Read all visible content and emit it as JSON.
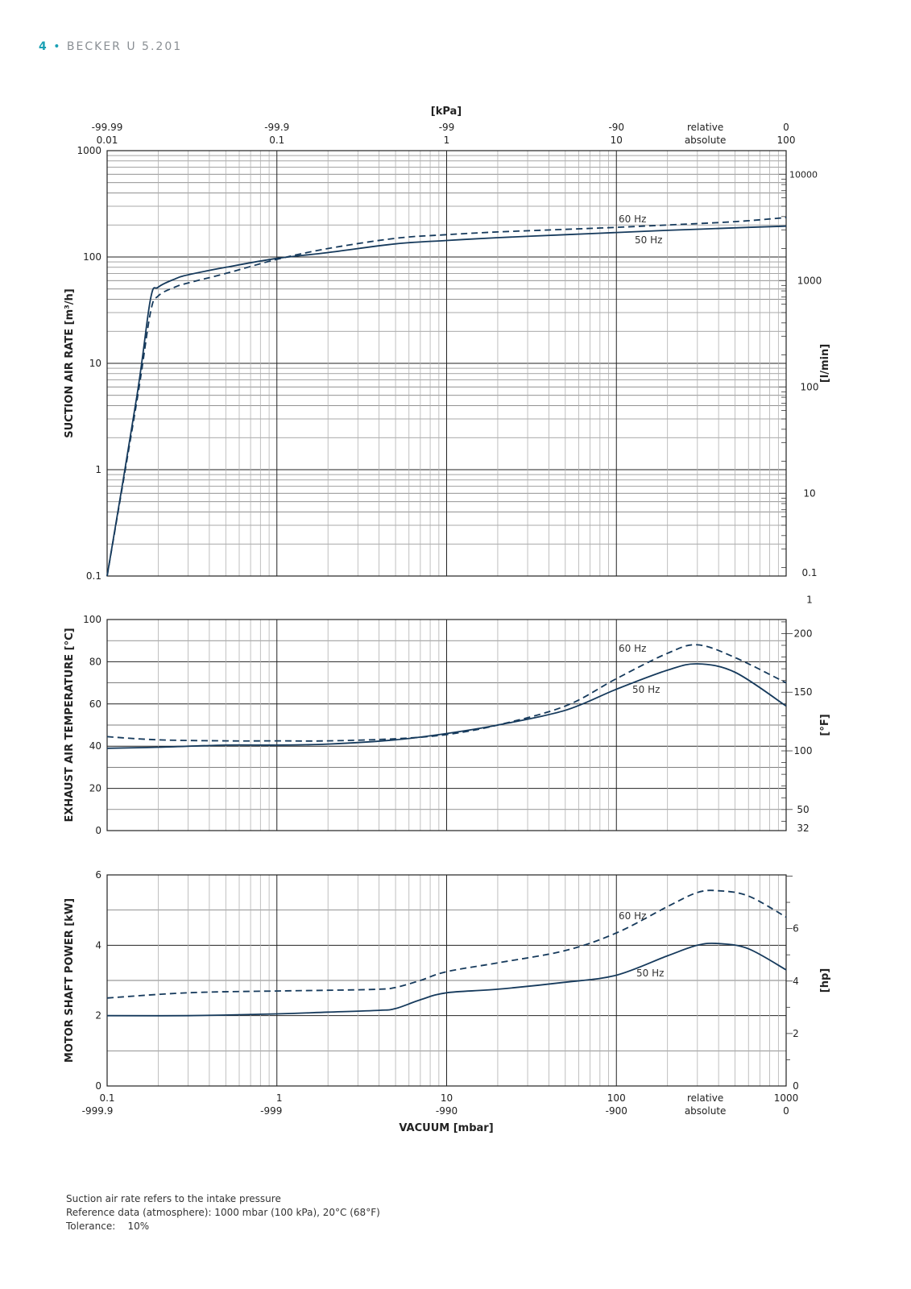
{
  "header": {
    "page_number": "4",
    "separator": "•",
    "title": "BECKER U 5.201"
  },
  "colors": {
    "curve": "#163a5c",
    "grid_major": "#222222",
    "grid_minor": "#b0b0b0",
    "accent": "#1aa0b4"
  },
  "chart_data": [
    {
      "type": "line",
      "title": "",
      "ylabel": "SUCTION AIR RATE  [m³/h]",
      "y2label": "[l/min]",
      "yscale": "log",
      "ylim": [
        0.1,
        1000
      ],
      "y_ticks": [
        "0.1",
        "1",
        "10",
        "100",
        "1000"
      ],
      "y2_ticks": [
        "0.1",
        "1",
        "10",
        "100",
        "1000",
        "10000"
      ],
      "top_axis_label": "[kPa]",
      "top_ticks_relative": [
        "-99.99",
        "-99.9",
        "-99",
        "-90",
        "relative",
        "0"
      ],
      "top_ticks_absolute": [
        "0.01",
        "0.1",
        "1",
        "10",
        "absolute",
        "100"
      ],
      "xscale": "log",
      "xlim": [
        0.1,
        1000
      ],
      "series": [
        {
          "name": "50 Hz",
          "style": "solid",
          "x": [
            0.1,
            0.15,
            0.18,
            0.2,
            0.25,
            0.3,
            0.5,
            1,
            2,
            5,
            10,
            20,
            50,
            100,
            200,
            500,
            1000
          ],
          "y": [
            0.1,
            5,
            40,
            52,
            62,
            68,
            80,
            97,
            110,
            133,
            143,
            152,
            162,
            170,
            178,
            188,
            195
          ]
        },
        {
          "name": "60 Hz",
          "style": "dashed",
          "x": [
            0.1,
            0.15,
            0.18,
            0.2,
            0.25,
            0.3,
            0.5,
            1,
            2,
            5,
            10,
            20,
            50,
            100,
            200,
            500,
            1000
          ],
          "y": [
            0.1,
            4.5,
            30,
            43,
            52,
            57,
            70,
            95,
            120,
            150,
            162,
            172,
            182,
            190,
            200,
            215,
            235
          ]
        }
      ]
    },
    {
      "type": "line",
      "title": "",
      "ylabel": "EXHAUST AIR TEMPERATURE  [°C]",
      "y2label": "[°F]",
      "yscale": "linear",
      "ylim": [
        0,
        100
      ],
      "y_ticks": [
        "0",
        "20",
        "40",
        "60",
        "80",
        "100"
      ],
      "y2_ticks": [
        "32",
        "50",
        "100",
        "150",
        "200"
      ],
      "xscale": "log",
      "xlim": [
        0.1,
        1000
      ],
      "series": [
        {
          "name": "50 Hz",
          "style": "solid",
          "x": [
            0.1,
            0.2,
            0.5,
            1,
            2,
            5,
            10,
            20,
            50,
            100,
            200,
            300,
            500,
            1000
          ],
          "y": [
            39,
            39.5,
            40.5,
            40.5,
            41,
            43,
            46,
            50,
            57,
            67,
            76,
            79,
            75,
            59
          ]
        },
        {
          "name": "60 Hz",
          "style": "dashed",
          "x": [
            0.1,
            0.2,
            0.5,
            1,
            2,
            5,
            10,
            20,
            50,
            100,
            200,
            300,
            500,
            1000
          ],
          "y": [
            44.5,
            43,
            42.5,
            42.5,
            42.5,
            43.5,
            45.5,
            50,
            59,
            72,
            84,
            88,
            82,
            70
          ]
        }
      ]
    },
    {
      "type": "line",
      "title": "",
      "ylabel": "MOTOR SHAFT POWER  [kW]",
      "y2label": "[hp]",
      "yscale": "linear",
      "ylim": [
        0,
        6
      ],
      "y_ticks": [
        "0",
        "2",
        "4",
        "6"
      ],
      "y2_ticks": [
        "0",
        "2",
        "4",
        "6"
      ],
      "xlabel": "VACUUM  [mbar]",
      "x_ticks_absolute": [
        "0.1",
        "1",
        "10",
        "100",
        "relative",
        "1000"
      ],
      "x_ticks_relative": [
        "-999.9",
        "-999",
        "-990",
        "-900",
        "absolute",
        "0"
      ],
      "xscale": "log",
      "xlim": [
        0.1,
        1000
      ],
      "series": [
        {
          "name": "50 Hz",
          "style": "solid",
          "x": [
            0.1,
            0.3,
            1,
            2,
            4,
            5,
            7,
            10,
            20,
            50,
            100,
            200,
            300,
            400,
            600,
            1000
          ],
          "y": [
            2.0,
            2.0,
            2.05,
            2.1,
            2.15,
            2.2,
            2.45,
            2.65,
            2.75,
            2.95,
            3.15,
            3.7,
            4.0,
            4.05,
            3.9,
            3.3
          ]
        },
        {
          "name": "60 Hz",
          "style": "dashed",
          "x": [
            0.1,
            0.3,
            1,
            2,
            4,
            5,
            7,
            10,
            20,
            50,
            100,
            200,
            300,
            400,
            600,
            1000
          ],
          "y": [
            2.5,
            2.65,
            2.7,
            2.72,
            2.75,
            2.8,
            3.0,
            3.25,
            3.5,
            3.85,
            4.35,
            5.1,
            5.5,
            5.55,
            5.4,
            4.8
          ]
        }
      ]
    }
  ],
  "footer": {
    "line1": "Suction air rate refers to the intake pressure",
    "line2": "Reference data (atmosphere): 1000 mbar (100 kPa), 20°C (68°F)",
    "line3": "Tolerance:    10%"
  }
}
